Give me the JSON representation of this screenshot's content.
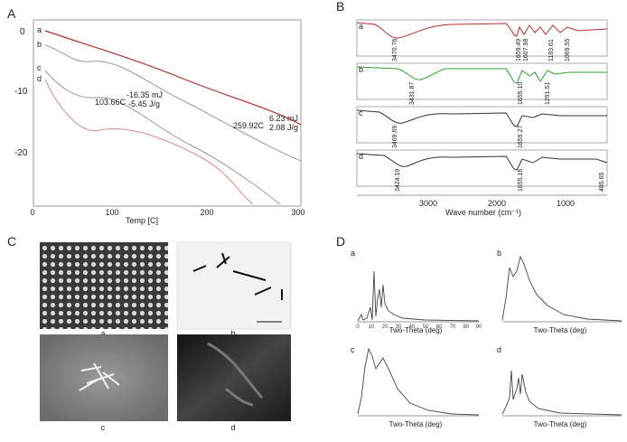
{
  "panels": {
    "A": {
      "letter": "A",
      "curve_labels": [
        "a",
        "b",
        "c",
        "d"
      ],
      "y_ticks": [
        "0",
        "-10",
        "-20"
      ],
      "x_ticks": [
        "0",
        "100",
        "200",
        "300"
      ],
      "xlabel": "Temp [C]",
      "annotations": {
        "c_temp": "103.66C",
        "c_energy": "-16.35 mJ",
        "c_specific": "-5.45 J/g",
        "a_temp": "259.92C",
        "a_energy": "6.23 mJ",
        "a_specific": "2.08 J/g"
      }
    },
    "B": {
      "letter": "B",
      "trace_labels": [
        "a",
        "b",
        "c",
        "d"
      ],
      "peaks": {
        "a": [
          "3470.76",
          "1659.49",
          "1607.98",
          "1183.61",
          "1069.55"
        ],
        "b": [
          "3431.87",
          "1655.10",
          "1291.51"
        ],
        "c": [
          "3469.69",
          "1659.27"
        ],
        "d": [
          "3424.19",
          "1655.16",
          "485.65"
        ]
      },
      "x_ticks": [
        "3000",
        "2000",
        "1000"
      ],
      "xlabel": "Wave number (cm⁻¹)"
    },
    "C": {
      "letter": "C",
      "image_labels": [
        "a",
        "b",
        "c",
        "d"
      ]
    },
    "D": {
      "letter": "D",
      "subplot_labels": [
        "a",
        "b",
        "c",
        "d"
      ],
      "x_ticks": [
        "0",
        "10",
        "20",
        "30",
        "40",
        "50",
        "60",
        "70",
        "80",
        "90"
      ],
      "xlabel": "Two-Theta (deg)"
    }
  },
  "colors": {
    "red": "#b03030",
    "green": "#2fa02f",
    "dark": "#333333",
    "grey": "#888888"
  }
}
